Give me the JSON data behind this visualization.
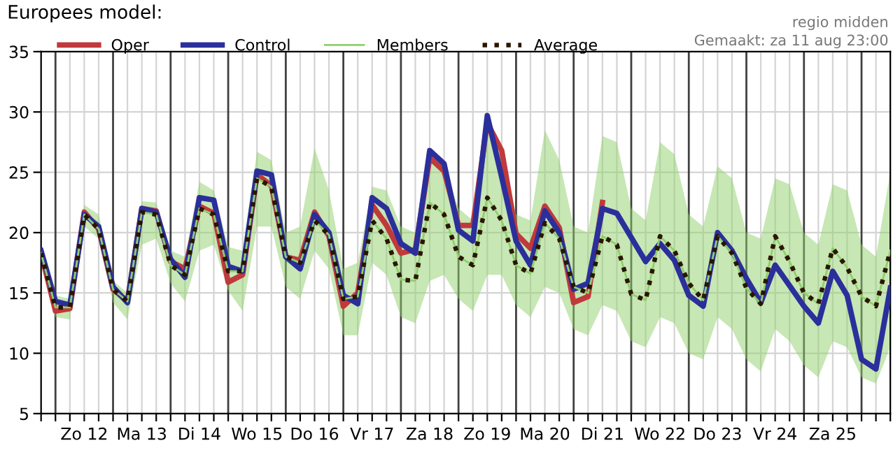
{
  "chart_data": {
    "type": "line",
    "title": "Europees model:",
    "annotations": [
      "regio midden",
      "Gemaakt: za 11 aug 23:00"
    ],
    "categories": [
      null,
      null,
      null,
      "Zo 12",
      null,
      null,
      null,
      "Ma 13",
      null,
      null,
      null,
      "Di 14",
      null,
      null,
      null,
      "Wo 15",
      null,
      null,
      null,
      "Do 16",
      null,
      null,
      null,
      "Vr 17",
      null,
      null,
      null,
      "Za 18",
      null,
      null,
      null,
      "Zo 19",
      null,
      null,
      null,
      "Ma 20",
      null,
      null,
      null,
      "Di 21",
      null,
      null,
      null,
      "Wo 22",
      null,
      null,
      null,
      "Do 23",
      null,
      null,
      null,
      "Vr 24",
      null,
      null,
      null,
      "Za 25",
      null,
      null,
      null,
      null
    ],
    "series": [
      {
        "name": "Oper",
        "color": "#c0393b",
        "line_style": "solid",
        "values": [
          18.3,
          13.5,
          13.7,
          21.7,
          20.3,
          15.3,
          14.3,
          22.0,
          21.8,
          17.6,
          17.0,
          22.2,
          21.6,
          15.9,
          16.5,
          24.8,
          23.9,
          18.0,
          17.7,
          21.7,
          19.7,
          13.9,
          15.0,
          22.3,
          20.6,
          18.3,
          18.6,
          26.2,
          25.1,
          20.6,
          20.6,
          29.1,
          26.8,
          19.9,
          18.7,
          22.2,
          20.4,
          14.2,
          14.7,
          22.5,
          null,
          null,
          null,
          null,
          null,
          null,
          null,
          null,
          null,
          null,
          null,
          null,
          null,
          null,
          null,
          null,
          null,
          null,
          null,
          null
        ]
      },
      {
        "name": "Control",
        "color": "#2b2f9b",
        "line_style": "solid",
        "values": [
          18.5,
          14.3,
          14.0,
          21.5,
          20.5,
          15.5,
          14.2,
          22.0,
          21.7,
          17.8,
          16.3,
          22.9,
          22.7,
          17.2,
          16.8,
          25.1,
          24.8,
          18.0,
          17.0,
          21.5,
          20.0,
          14.8,
          14.1,
          22.9,
          22.0,
          19.1,
          18.3,
          26.8,
          25.7,
          20.2,
          19.3,
          29.7,
          24.6,
          19.3,
          17.3,
          21.8,
          20.0,
          15.3,
          15.8,
          22.0,
          21.6,
          19.6,
          17.6,
          19.1,
          17.7,
          14.8,
          13.9,
          20.0,
          18.5,
          16.2,
          14.2,
          17.3,
          15.6,
          13.9,
          12.5,
          16.8,
          14.8,
          9.5,
          8.7,
          15.4
        ]
      },
      {
        "name": "Members",
        "color": "#8fcf6a",
        "type": "line",
        "line_style": "solid",
        "values": [
          18.3,
          13.8,
          13.8,
          21.5,
          20.3,
          15.3,
          14.3,
          21.7,
          21.5,
          17.3,
          16.5,
          22.0,
          21.5,
          16.8,
          16.8,
          24.5,
          23.8,
          18.0,
          17.5,
          21.0,
          19.8,
          14.5,
          14.7,
          21.0,
          19.5,
          16.1,
          16.0,
          22.5,
          21.5,
          18.0,
          17.3,
          22.9,
          21.0,
          17.3,
          16.6,
          20.8,
          19.5,
          15.5,
          15.0,
          19.7,
          19.0,
          14.9,
          14.4,
          19.7,
          18.5,
          15.8,
          14.4,
          19.7,
          18.3,
          15.4,
          14.1,
          19.7,
          17.6,
          15.0,
          14.1,
          18.7,
          17.1,
          14.7,
          13.9,
          18.5
        ],
        "lower": [
          18.0,
          13.0,
          12.8,
          20.5,
          19.5,
          14.2,
          12.8,
          19.0,
          19.5,
          15.8,
          14.3,
          18.5,
          19.0,
          15.2,
          13.5,
          20.5,
          20.5,
          15.5,
          14.5,
          18.5,
          17.0,
          11.5,
          11.5,
          17.5,
          16.5,
          13.0,
          12.5,
          16.0,
          16.5,
          14.5,
          13.5,
          16.5,
          16.5,
          14.0,
          13.0,
          15.5,
          15.0,
          12.0,
          11.5,
          14.0,
          13.5,
          11.0,
          10.5,
          13.0,
          12.5,
          10.0,
          9.5,
          13.0,
          12.0,
          9.5,
          8.5,
          12.0,
          11.0,
          9.0,
          8.0,
          11.0,
          10.5,
          8.0,
          7.5,
          10.5
        ],
        "upper": [
          18.6,
          14.8,
          14.5,
          22.3,
          21.5,
          16.0,
          15.0,
          22.6,
          22.5,
          18.5,
          18.0,
          24.2,
          23.5,
          18.8,
          18.5,
          26.7,
          26.0,
          20.0,
          20.5,
          27.0,
          23.5,
          17.0,
          17.5,
          23.8,
          23.5,
          20.5,
          20.0,
          26.5,
          25.5,
          22.0,
          21.0,
          29.0,
          27.0,
          21.5,
          21.0,
          28.5,
          26.0,
          20.5,
          20.0,
          28.0,
          27.5,
          22.0,
          21.0,
          27.5,
          26.5,
          21.5,
          20.5,
          25.5,
          24.5,
          20.0,
          19.5,
          24.5,
          24.0,
          20.0,
          19.0,
          24.0,
          23.5,
          19.0,
          18.0,
          25.0
        ]
      },
      {
        "name": "Average",
        "color": "#2a1500",
        "line_style": "dotted",
        "values": [
          18.3,
          13.8,
          13.8,
          21.5,
          20.3,
          15.3,
          14.3,
          21.7,
          21.5,
          17.3,
          16.5,
          22.0,
          21.5,
          16.8,
          16.8,
          24.5,
          23.8,
          18.0,
          17.5,
          21.0,
          19.8,
          14.5,
          14.7,
          21.0,
          19.5,
          16.1,
          16.0,
          22.5,
          21.5,
          18.0,
          17.3,
          22.9,
          21.0,
          17.3,
          16.6,
          20.8,
          19.5,
          15.5,
          15.0,
          19.7,
          19.0,
          14.9,
          14.4,
          19.7,
          18.5,
          15.8,
          14.4,
          19.7,
          18.3,
          15.4,
          14.1,
          19.7,
          17.6,
          15.0,
          14.1,
          18.7,
          17.1,
          14.7,
          13.9,
          18.5
        ]
      }
    ],
    "ylim": [
      5,
      35
    ],
    "yticks": [
      5,
      10,
      15,
      20,
      25,
      30,
      35
    ],
    "grid": true,
    "legend": "top"
  }
}
